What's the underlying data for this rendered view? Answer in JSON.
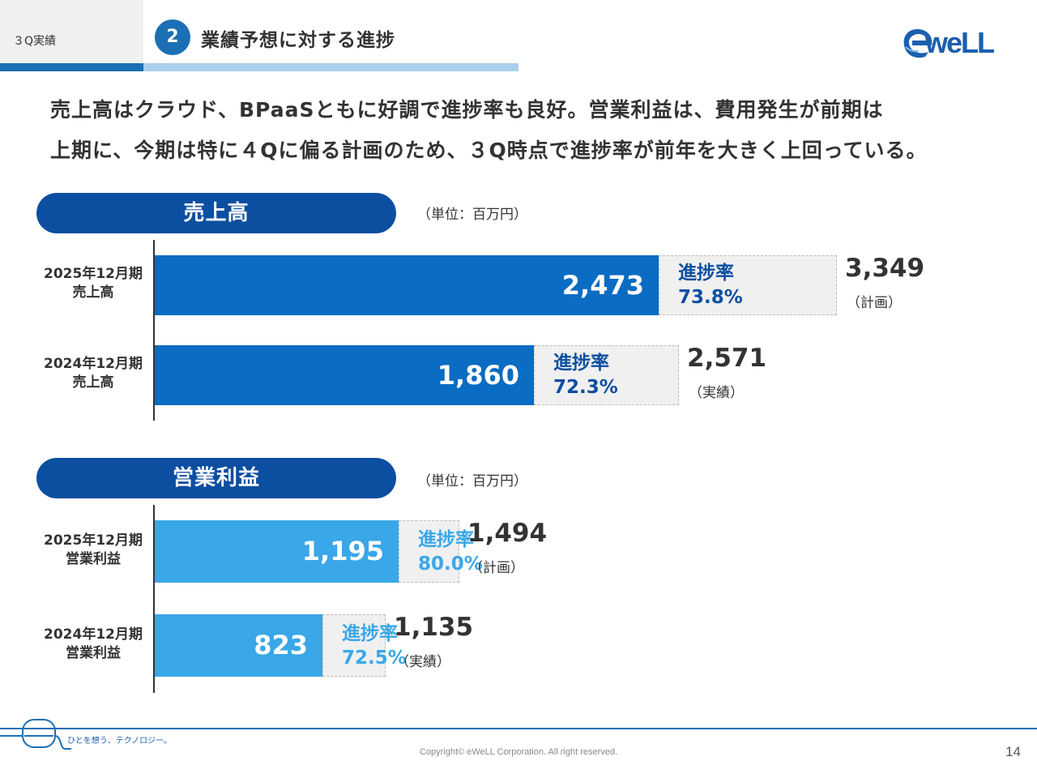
{
  "header": {
    "section_label": "３Q実績",
    "step_number": "2",
    "title": "業績予想に対する進捗",
    "logo_text": "weLL"
  },
  "intro": {
    "line1": "売上高はクラウド、BPaaSともに好調で進捗率も良好。営業利益は、費用発生が前期は",
    "line2": "上期に、今期は特に４Qに偏る計画のため、３Q時点で進捗率が前年を大きく上回っている。"
  },
  "colors": {
    "sales_bar": "#0a6cc2",
    "op_bar": "#3aa7e8",
    "pill": "#0c4fa0",
    "ghost": "#f0f0f0"
  },
  "sections": {
    "sales": {
      "title": "売上高",
      "unit": "（単位：百万円）"
    },
    "op": {
      "title": "営業利益",
      "unit": "（単位：百万円）"
    }
  },
  "chart_data": [
    {
      "type": "bar",
      "orientation": "horizontal",
      "title": "売上高",
      "unit": "（単位：百万円）",
      "rows": [
        {
          "label1": "2025年12月期",
          "label2": "売上高",
          "actual": 2473,
          "actual_label": "2,473",
          "total": 3349,
          "total_label": "3,349",
          "total_note": "（計画）",
          "rate_title": "進捗率",
          "rate": "73.8%"
        },
        {
          "label1": "2024年12月期",
          "label2": "売上高",
          "actual": 1860,
          "actual_label": "1,860",
          "total": 2571,
          "total_label": "2,571",
          "total_note": "（実績）",
          "rate_title": "進捗率",
          "rate": "72.3%"
        }
      ]
    },
    {
      "type": "bar",
      "orientation": "horizontal",
      "title": "営業利益",
      "unit": "（単位：百万円）",
      "rows": [
        {
          "label1": "2025年12月期",
          "label2": "営業利益",
          "actual": 1195,
          "actual_label": "1,195",
          "total": 1494,
          "total_label": "1,494",
          "total_note": "（計画）",
          "rate_title": "進捗率",
          "rate": "80.0%"
        },
        {
          "label1": "2024年12月期",
          "label2": "営業利益",
          "actual": 823,
          "actual_label": "823",
          "total": 1135,
          "total_label": "1,135",
          "total_note": "（実績）",
          "rate_title": "進捗率",
          "rate": "72.5%"
        }
      ]
    }
  ],
  "footer": {
    "tagline": "ひとを想う、テクノロジー。",
    "copyright": "Copyright© eWeLL Corporation. All right reserved.",
    "page_number": "14"
  }
}
